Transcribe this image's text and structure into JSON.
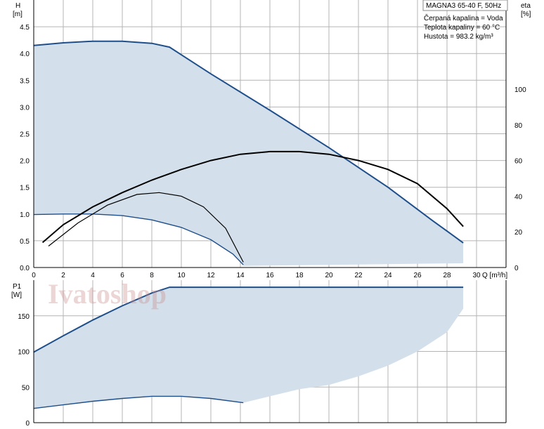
{
  "info_box": {
    "model": "MAGNA3 65-40 F, 50Hz",
    "lines": [
      "Čerpaná kapalina = Voda",
      "Teplota kapaliny = 60 °C",
      "Hustota = 983.2 kg/m³"
    ]
  },
  "watermark": "Ivatoshop",
  "colors": {
    "area": "#d3dfea",
    "curve": "#1f4f8a",
    "eta": "#000000",
    "grid": "#b4b4b4"
  },
  "chart_data": [
    {
      "type": "area",
      "panel": "head",
      "xlabel": "Q [m³/h]",
      "ylabel_left": [
        "H",
        "[m]"
      ],
      "ylabel_right": [
        "eta",
        "[%]"
      ],
      "xlim": [
        0,
        32
      ],
      "ylim": [
        0,
        5
      ],
      "y2lim": [
        0,
        150
      ],
      "x_ticks": [
        0,
        2,
        4,
        6,
        8,
        10,
        12,
        14,
        16,
        18,
        20,
        22,
        24,
        26,
        28,
        30
      ],
      "y_ticks": [
        "0.0",
        "0.5",
        "1.0",
        "1.5",
        "2.0",
        "2.5",
        "3.0",
        "3.5",
        "4.0",
        "4.5"
      ],
      "y2_ticks": [
        0,
        20,
        40,
        60,
        80,
        100
      ],
      "grid": true,
      "series": [
        {
          "role": "max-curve",
          "x": [
            0,
            2,
            4,
            6,
            8,
            9.2,
            12,
            16,
            20,
            24,
            27,
            29.1
          ],
          "y": [
            4.15,
            4.2,
            4.23,
            4.23,
            4.19,
            4.12,
            3.62,
            2.94,
            2.24,
            1.5,
            0.88,
            0.46
          ]
        },
        {
          "role": "min-curve",
          "x": [
            0,
            2,
            4,
            6,
            8,
            10,
            12,
            13.5,
            14.2
          ],
          "y": [
            0.99,
            1.0,
            1.0,
            0.97,
            0.89,
            0.75,
            0.52,
            0.25,
            0.05
          ]
        },
        {
          "role": "area-bottom",
          "x": [
            14.2,
            29.1
          ],
          "y": [
            0.03,
            0.08
          ]
        },
        {
          "role": "eta-max",
          "x": [
            0.6,
            2,
            4,
            6,
            8,
            10,
            12,
            14,
            16,
            18,
            20,
            22,
            24,
            26,
            28,
            29.1
          ],
          "y": [
            14,
            24,
            34,
            42,
            49,
            55,
            60,
            63.5,
            65,
            65,
            63.5,
            60,
            55,
            47,
            33,
            23
          ]
        },
        {
          "role": "eta-min",
          "x": [
            1.0,
            3,
            5,
            7,
            8.5,
            10,
            11.5,
            13,
            14.2
          ],
          "y": [
            12,
            25,
            35,
            41,
            42,
            40,
            34,
            22,
            3
          ]
        }
      ]
    },
    {
      "type": "area",
      "panel": "power",
      "ylabel_left": [
        "P1",
        "[W]"
      ],
      "xlim": [
        0,
        32
      ],
      "ylim": [
        0,
        200
      ],
      "y_ticks": [
        0,
        50,
        100,
        150
      ],
      "grid": true,
      "series": [
        {
          "role": "max-power",
          "x": [
            0,
            2,
            4,
            6,
            8,
            9.2,
            14,
            20,
            26,
            29.1
          ],
          "y": [
            99,
            122,
            144,
            164,
            182,
            190,
            190,
            190,
            190,
            190
          ]
        },
        {
          "role": "min-power",
          "x": [
            0,
            2,
            4,
            6,
            8,
            10,
            12,
            14.2
          ],
          "y": [
            20,
            25,
            30,
            34,
            37,
            37,
            34,
            28
          ]
        },
        {
          "role": "area-right-boundary",
          "x": [
            14.2,
            16,
            18,
            20,
            22,
            24,
            26,
            28,
            29.1
          ],
          "y": [
            28,
            37,
            47,
            53,
            65,
            80,
            100,
            127,
            160
          ]
        }
      ]
    }
  ]
}
